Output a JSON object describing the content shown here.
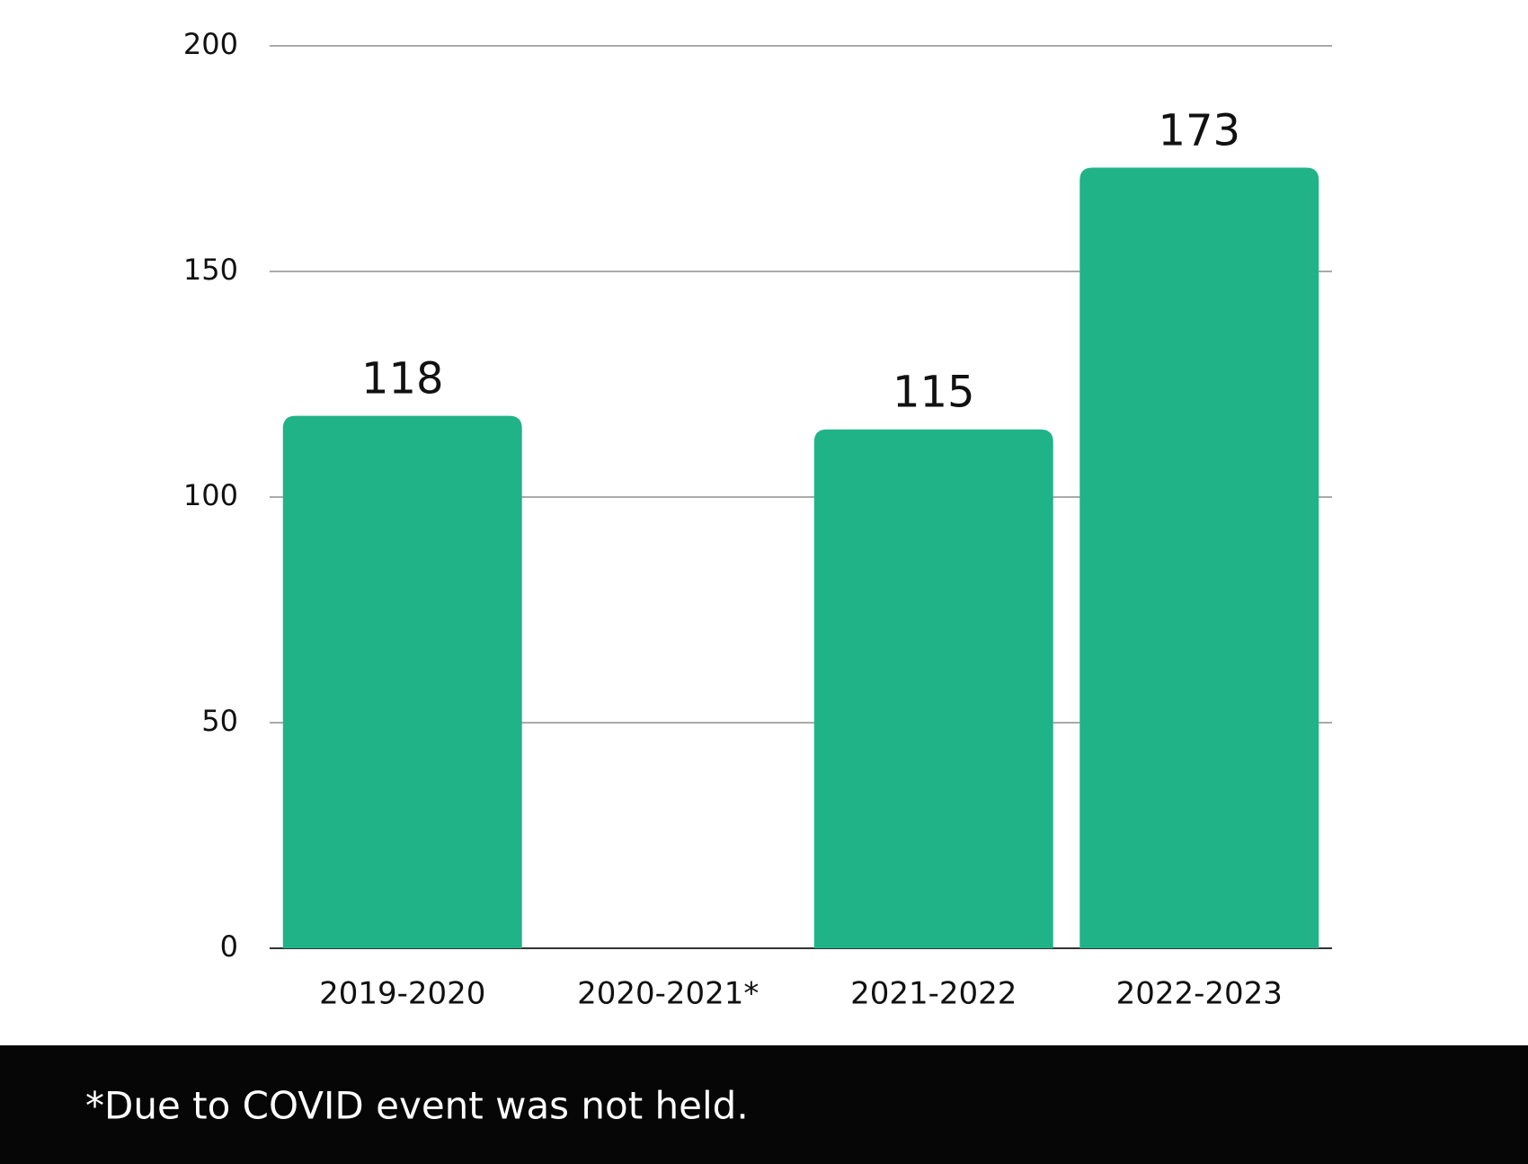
{
  "chart_data": {
    "type": "bar",
    "categories": [
      "2019-2020",
      "2020-2021*",
      "2021-2022",
      "2022-2023"
    ],
    "values": [
      118,
      null,
      115,
      173
    ],
    "color": "#21b388",
    "ylim": [
      0,
      200
    ],
    "yticks": [
      0,
      50,
      100,
      150,
      200
    ],
    "grid": true,
    "footnote": "*Due to COVID event was not held."
  }
}
